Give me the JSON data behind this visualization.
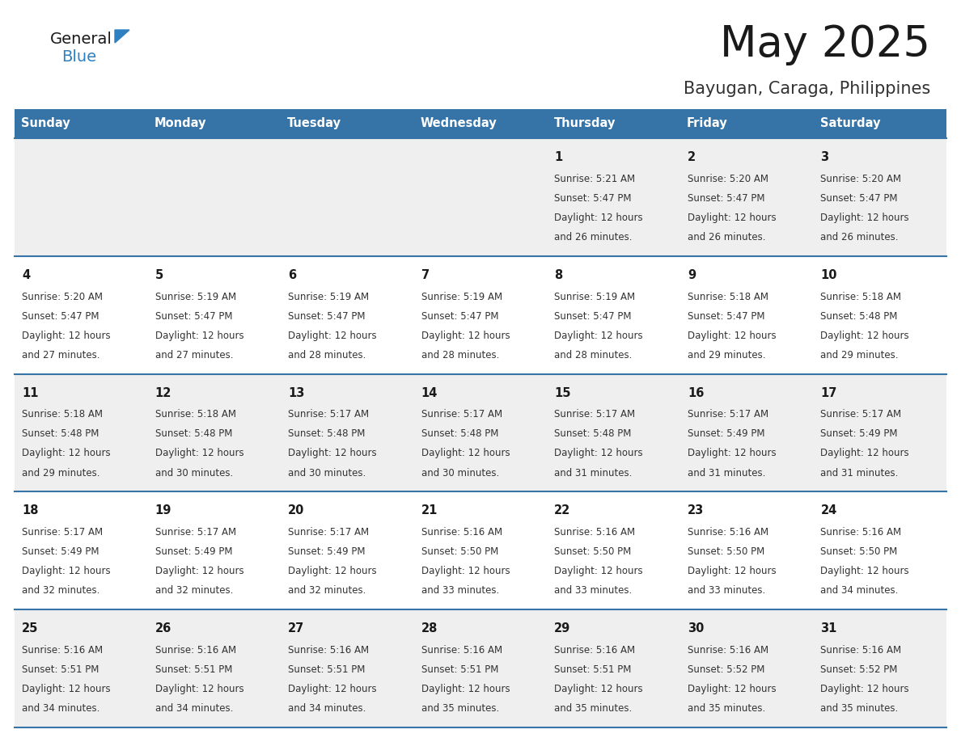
{
  "title": "May 2025",
  "subtitle": "Bayugan, Caraga, Philippines",
  "days_of_week": [
    "Sunday",
    "Monday",
    "Tuesday",
    "Wednesday",
    "Thursday",
    "Friday",
    "Saturday"
  ],
  "header_bg": "#3674a8",
  "header_text": "#FFFFFF",
  "row_bg_odd": "#EFEFEF",
  "row_bg_even": "#FFFFFF",
  "cell_border": "#3674a8",
  "title_color": "#1a1a1a",
  "subtitle_color": "#333333",
  "day_number_color": "#1a1a1a",
  "info_color": "#333333",
  "logo_general_color": "#1a1a1a",
  "logo_blue_color": "#2F80C0",
  "calendar_data": [
    [
      null,
      null,
      null,
      null,
      {
        "day": 1,
        "sunrise": "5:21 AM",
        "sunset": "5:47 PM",
        "daylight_h": "12 hours",
        "daylight_m": "26 minutes"
      },
      {
        "day": 2,
        "sunrise": "5:20 AM",
        "sunset": "5:47 PM",
        "daylight_h": "12 hours",
        "daylight_m": "26 minutes"
      },
      {
        "day": 3,
        "sunrise": "5:20 AM",
        "sunset": "5:47 PM",
        "daylight_h": "12 hours",
        "daylight_m": "26 minutes"
      }
    ],
    [
      {
        "day": 4,
        "sunrise": "5:20 AM",
        "sunset": "5:47 PM",
        "daylight_h": "12 hours",
        "daylight_m": "27 minutes"
      },
      {
        "day": 5,
        "sunrise": "5:19 AM",
        "sunset": "5:47 PM",
        "daylight_h": "12 hours",
        "daylight_m": "27 minutes"
      },
      {
        "day": 6,
        "sunrise": "5:19 AM",
        "sunset": "5:47 PM",
        "daylight_h": "12 hours",
        "daylight_m": "28 minutes"
      },
      {
        "day": 7,
        "sunrise": "5:19 AM",
        "sunset": "5:47 PM",
        "daylight_h": "12 hours",
        "daylight_m": "28 minutes"
      },
      {
        "day": 8,
        "sunrise": "5:19 AM",
        "sunset": "5:47 PM",
        "daylight_h": "12 hours",
        "daylight_m": "28 minutes"
      },
      {
        "day": 9,
        "sunrise": "5:18 AM",
        "sunset": "5:47 PM",
        "daylight_h": "12 hours",
        "daylight_m": "29 minutes"
      },
      {
        "day": 10,
        "sunrise": "5:18 AM",
        "sunset": "5:48 PM",
        "daylight_h": "12 hours",
        "daylight_m": "29 minutes"
      }
    ],
    [
      {
        "day": 11,
        "sunrise": "5:18 AM",
        "sunset": "5:48 PM",
        "daylight_h": "12 hours",
        "daylight_m": "29 minutes"
      },
      {
        "day": 12,
        "sunrise": "5:18 AM",
        "sunset": "5:48 PM",
        "daylight_h": "12 hours",
        "daylight_m": "30 minutes"
      },
      {
        "day": 13,
        "sunrise": "5:17 AM",
        "sunset": "5:48 PM",
        "daylight_h": "12 hours",
        "daylight_m": "30 minutes"
      },
      {
        "day": 14,
        "sunrise": "5:17 AM",
        "sunset": "5:48 PM",
        "daylight_h": "12 hours",
        "daylight_m": "30 minutes"
      },
      {
        "day": 15,
        "sunrise": "5:17 AM",
        "sunset": "5:48 PM",
        "daylight_h": "12 hours",
        "daylight_m": "31 minutes"
      },
      {
        "day": 16,
        "sunrise": "5:17 AM",
        "sunset": "5:49 PM",
        "daylight_h": "12 hours",
        "daylight_m": "31 minutes"
      },
      {
        "day": 17,
        "sunrise": "5:17 AM",
        "sunset": "5:49 PM",
        "daylight_h": "12 hours",
        "daylight_m": "31 minutes"
      }
    ],
    [
      {
        "day": 18,
        "sunrise": "5:17 AM",
        "sunset": "5:49 PM",
        "daylight_h": "12 hours",
        "daylight_m": "32 minutes"
      },
      {
        "day": 19,
        "sunrise": "5:17 AM",
        "sunset": "5:49 PM",
        "daylight_h": "12 hours",
        "daylight_m": "32 minutes"
      },
      {
        "day": 20,
        "sunrise": "5:17 AM",
        "sunset": "5:49 PM",
        "daylight_h": "12 hours",
        "daylight_m": "32 minutes"
      },
      {
        "day": 21,
        "sunrise": "5:16 AM",
        "sunset": "5:50 PM",
        "daylight_h": "12 hours",
        "daylight_m": "33 minutes"
      },
      {
        "day": 22,
        "sunrise": "5:16 AM",
        "sunset": "5:50 PM",
        "daylight_h": "12 hours",
        "daylight_m": "33 minutes"
      },
      {
        "day": 23,
        "sunrise": "5:16 AM",
        "sunset": "5:50 PM",
        "daylight_h": "12 hours",
        "daylight_m": "33 minutes"
      },
      {
        "day": 24,
        "sunrise": "5:16 AM",
        "sunset": "5:50 PM",
        "daylight_h": "12 hours",
        "daylight_m": "34 minutes"
      }
    ],
    [
      {
        "day": 25,
        "sunrise": "5:16 AM",
        "sunset": "5:51 PM",
        "daylight_h": "12 hours",
        "daylight_m": "34 minutes"
      },
      {
        "day": 26,
        "sunrise": "5:16 AM",
        "sunset": "5:51 PM",
        "daylight_h": "12 hours",
        "daylight_m": "34 minutes"
      },
      {
        "day": 27,
        "sunrise": "5:16 AM",
        "sunset": "5:51 PM",
        "daylight_h": "12 hours",
        "daylight_m": "34 minutes"
      },
      {
        "day": 28,
        "sunrise": "5:16 AM",
        "sunset": "5:51 PM",
        "daylight_h": "12 hours",
        "daylight_m": "35 minutes"
      },
      {
        "day": 29,
        "sunrise": "5:16 AM",
        "sunset": "5:51 PM",
        "daylight_h": "12 hours",
        "daylight_m": "35 minutes"
      },
      {
        "day": 30,
        "sunrise": "5:16 AM",
        "sunset": "5:52 PM",
        "daylight_h": "12 hours",
        "daylight_m": "35 minutes"
      },
      {
        "day": 31,
        "sunrise": "5:16 AM",
        "sunset": "5:52 PM",
        "daylight_h": "12 hours",
        "daylight_m": "35 minutes"
      }
    ]
  ]
}
